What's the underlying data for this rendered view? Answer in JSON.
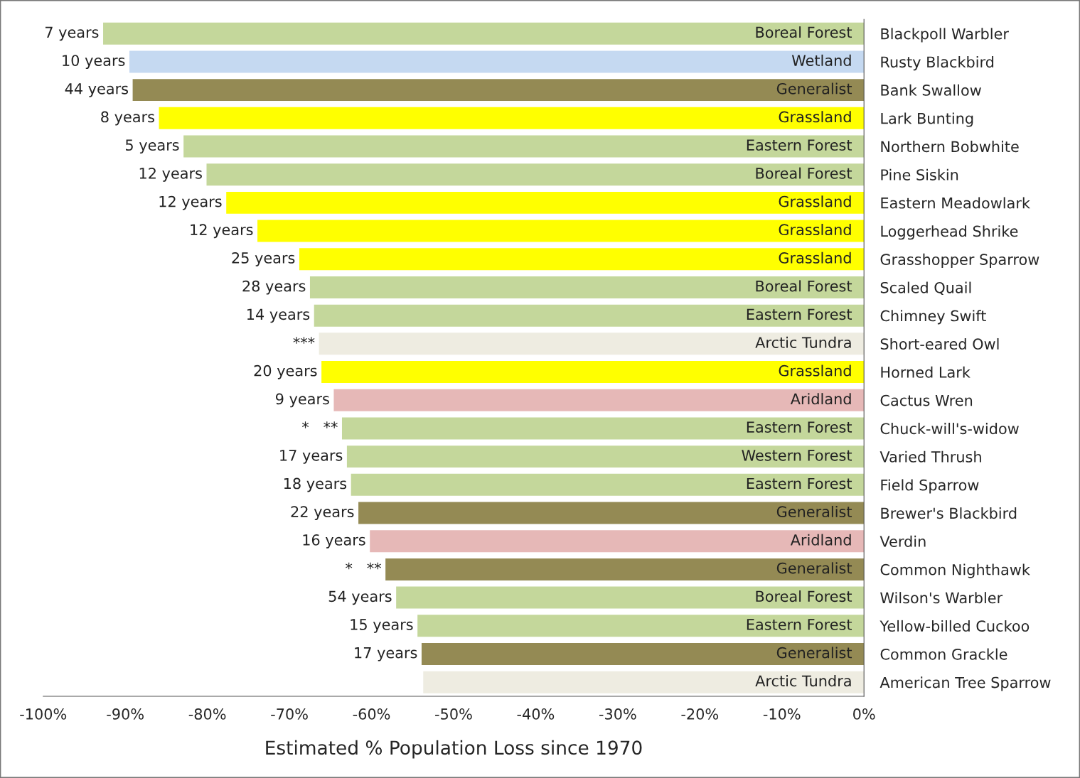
{
  "chart_data": {
    "type": "bar",
    "orientation": "horizontal",
    "xlabel": "Estimated % Population Loss since 1970",
    "categories": [
      "Blackpoll Warbler",
      "Rusty Blackbird",
      "Bank Swallow",
      "Lark Bunting",
      "Northern Bobwhite",
      "Pine Siskin",
      "Eastern Meadowlark",
      "Loggerhead Shrike",
      "Grasshopper Sparrow",
      "Scaled Quail",
      "Chimney Swift",
      "Short-eared Owl",
      "Horned Lark",
      "Cactus Wren",
      "Chuck-will's-widow",
      "Varied Thrush",
      "Field Sparrow",
      "Brewer's Blackbird",
      "Verdin",
      "Common Nighthawk",
      "Wilson's Warbler",
      "Yellow-billed Cuckoo",
      "Common Grackle",
      "American Tree Sparrow"
    ],
    "values": [
      -92.7,
      -89.5,
      -89.1,
      -85.9,
      -82.9,
      -80.1,
      -77.7,
      -73.9,
      -68.8,
      -67.5,
      -67.0,
      -66.4,
      -66.1,
      -64.6,
      -63.6,
      -63.0,
      -62.5,
      -61.6,
      -60.2,
      -58.3,
      -57.0,
      -54.4,
      -53.9,
      -53.7
    ],
    "colors": [
      "#c4d79b",
      "#c5d9f1",
      "#948a54",
      "#ffff00",
      "#c4d79b",
      "#c4d79b",
      "#ffff00",
      "#ffff00",
      "#ffff00",
      "#c4d79b",
      "#c4d79b",
      "#eeece1",
      "#ffff00",
      "#e6b8b7",
      "#c4d79b",
      "#c4d79b",
      "#c4d79b",
      "#948a54",
      "#e6b8b7",
      "#948a54",
      "#c4d79b",
      "#c4d79b",
      "#948a54",
      "#eeece1"
    ],
    "xlim": [
      -100,
      0
    ],
    "xticks": [
      {
        "value": -100,
        "label": "-100%"
      },
      {
        "value": -90,
        "label": "-90%"
      },
      {
        "value": -80,
        "label": "-80%"
      },
      {
        "value": -70,
        "label": "-70%"
      },
      {
        "value": -60,
        "label": "-60%"
      },
      {
        "value": -50,
        "label": "-50%"
      },
      {
        "value": -40,
        "label": "-40%"
      },
      {
        "value": -30,
        "label": "-30%"
      },
      {
        "value": -20,
        "label": "-20%"
      },
      {
        "value": -10,
        "label": "-10%"
      },
      {
        "value": 0,
        "label": "0%"
      }
    ],
    "grid": false,
    "legend": false,
    "annotations": [
      {
        "text": "7 years",
        "x": -92.7,
        "y": "Blackpoll Warbler"
      },
      {
        "text": "10 years",
        "x": -89.5,
        "y": "Rusty Blackbird"
      },
      {
        "text": "44 years",
        "x": -89.1,
        "y": "Bank Swallow"
      },
      {
        "text": "8 years",
        "x": -85.9,
        "y": "Lark Bunting"
      },
      {
        "text": "5 years",
        "x": -82.9,
        "y": "Northern Bobwhite"
      },
      {
        "text": "12 years",
        "x": -80.1,
        "y": "Pine Siskin"
      },
      {
        "text": "12 years",
        "x": -77.7,
        "y": "Eastern Meadowlark"
      },
      {
        "text": "12 years",
        "x": -73.9,
        "y": "Loggerhead Shrike"
      },
      {
        "text": "25 years",
        "x": -68.8,
        "y": "Grasshopper Sparrow"
      },
      {
        "text": "28 years",
        "x": -67.5,
        "y": "Scaled Quail"
      },
      {
        "text": "14 years",
        "x": -67.0,
        "y": "Chimney Swift"
      },
      {
        "text": "***",
        "x": -66.4,
        "y": "Short-eared Owl"
      },
      {
        "text": "20 years",
        "x": -66.1,
        "y": "Horned Lark"
      },
      {
        "text": "9 years",
        "x": -64.6,
        "y": "Cactus Wren"
      },
      {
        "text": "*   **",
        "x": -63.6,
        "y": "Chuck-will's-widow"
      },
      {
        "text": "17 years",
        "x": -63.0,
        "y": "Varied Thrush"
      },
      {
        "text": "18 years",
        "x": -62.5,
        "y": "Field Sparrow"
      },
      {
        "text": "22 years",
        "x": -61.6,
        "y": "Brewer's Blackbird"
      },
      {
        "text": "16 years",
        "x": -60.2,
        "y": "Verdin"
      },
      {
        "text": "*   **",
        "x": -58.3,
        "y": "Common Nighthawk"
      },
      {
        "text": "54 years",
        "x": -57.0,
        "y": "Wilson's Warbler"
      },
      {
        "text": "15 years",
        "x": -54.4,
        "y": "Yellow-billed Cuckoo"
      },
      {
        "text": "17 years",
        "x": -53.9,
        "y": "Common Grackle"
      },
      {
        "text": "Boreal Forest",
        "x": 0,
        "y": "Blackpoll Warbler"
      },
      {
        "text": "Wetland",
        "x": 0,
        "y": "Rusty Blackbird"
      },
      {
        "text": "Generalist",
        "x": 0,
        "y": "Bank Swallow"
      },
      {
        "text": "Grassland",
        "x": 0,
        "y": "Lark Bunting"
      },
      {
        "text": "Eastern Forest",
        "x": 0,
        "y": "Northern Bobwhite"
      },
      {
        "text": "Boreal Forest",
        "x": 0,
        "y": "Pine Siskin"
      },
      {
        "text": "Grassland",
        "x": 0,
        "y": "Eastern Meadowlark"
      },
      {
        "text": "Grassland",
        "x": 0,
        "y": "Loggerhead Shrike"
      },
      {
        "text": "Grassland",
        "x": 0,
        "y": "Grasshopper Sparrow"
      },
      {
        "text": "Boreal Forest",
        "x": 0,
        "y": "Scaled Quail"
      },
      {
        "text": "Eastern Forest",
        "x": 0,
        "y": "Chimney Swift"
      },
      {
        "text": "Arctic Tundra",
        "x": 0,
        "y": "Short-eared Owl"
      },
      {
        "text": "Grassland",
        "x": 0,
        "y": "Horned Lark"
      },
      {
        "text": "Aridland",
        "x": 0,
        "y": "Cactus Wren"
      },
      {
        "text": "Eastern Forest",
        "x": 0,
        "y": "Chuck-will's-widow"
      },
      {
        "text": "Western Forest",
        "x": 0,
        "y": "Varied Thrush"
      },
      {
        "text": "Eastern Forest",
        "x": 0,
        "y": "Field Sparrow"
      },
      {
        "text": "Generalist",
        "x": 0,
        "y": "Brewer's Blackbird"
      },
      {
        "text": "Aridland",
        "x": 0,
        "y": "Verdin"
      },
      {
        "text": "Generalist",
        "x": 0,
        "y": "Common Nighthawk"
      },
      {
        "text": "Boreal Forest",
        "x": 0,
        "y": "Wilson's Warbler"
      },
      {
        "text": "Eastern Forest",
        "x": 0,
        "y": "Yellow-billed Cuckoo"
      },
      {
        "text": "Generalist",
        "x": 0,
        "y": "Common Grackle"
      },
      {
        "text": "Arctic Tundra",
        "x": 0,
        "y": "American Tree Sparrow"
      }
    ]
  }
}
